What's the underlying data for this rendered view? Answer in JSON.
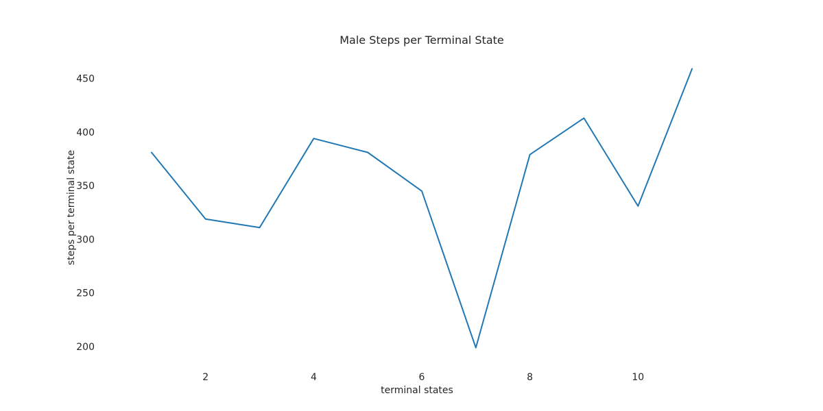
{
  "chart_data": {
    "type": "line",
    "title": "Male Steps per Terminal State",
    "xlabel": "terminal states",
    "ylabel": "steps per terminal state",
    "x": [
      1,
      2,
      3,
      4,
      5,
      6,
      7,
      8,
      9,
      10,
      11
    ],
    "series": [
      {
        "values": [
          381,
          319,
          311,
          394,
          381,
          345,
          199,
          379,
          413,
          331,
          459
        ],
        "color": "#1f77b4"
      }
    ],
    "xticks": [
      2,
      4,
      6,
      8,
      10
    ],
    "yticks": [
      200,
      250,
      300,
      350,
      400,
      450
    ],
    "xlim": [
      0.1,
      11.9
    ],
    "ylim": [
      186,
      472
    ],
    "grid": false,
    "legend": "none"
  }
}
